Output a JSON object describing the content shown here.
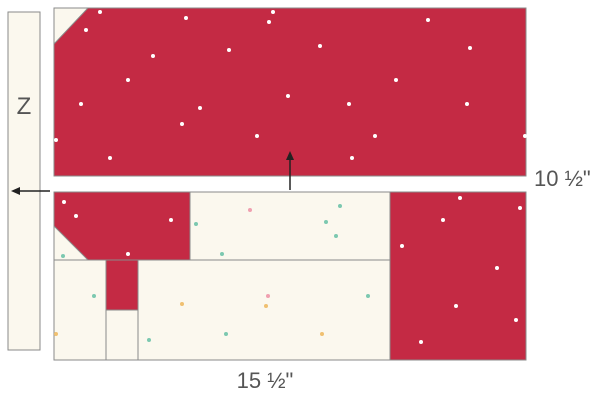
{
  "colors": {
    "red": "#c42a44",
    "cream": "#fbf8ee",
    "outline": "#8a8a8a",
    "dot_white": "#ffffff",
    "dot_teal": "#7cc8b0",
    "dot_pink": "#f0a0b0",
    "dot_yellow": "#f0c070"
  },
  "labels": {
    "strip_letter": "Z",
    "height_dimension": "10 ½\"",
    "width_dimension": "15 ½\""
  }
}
